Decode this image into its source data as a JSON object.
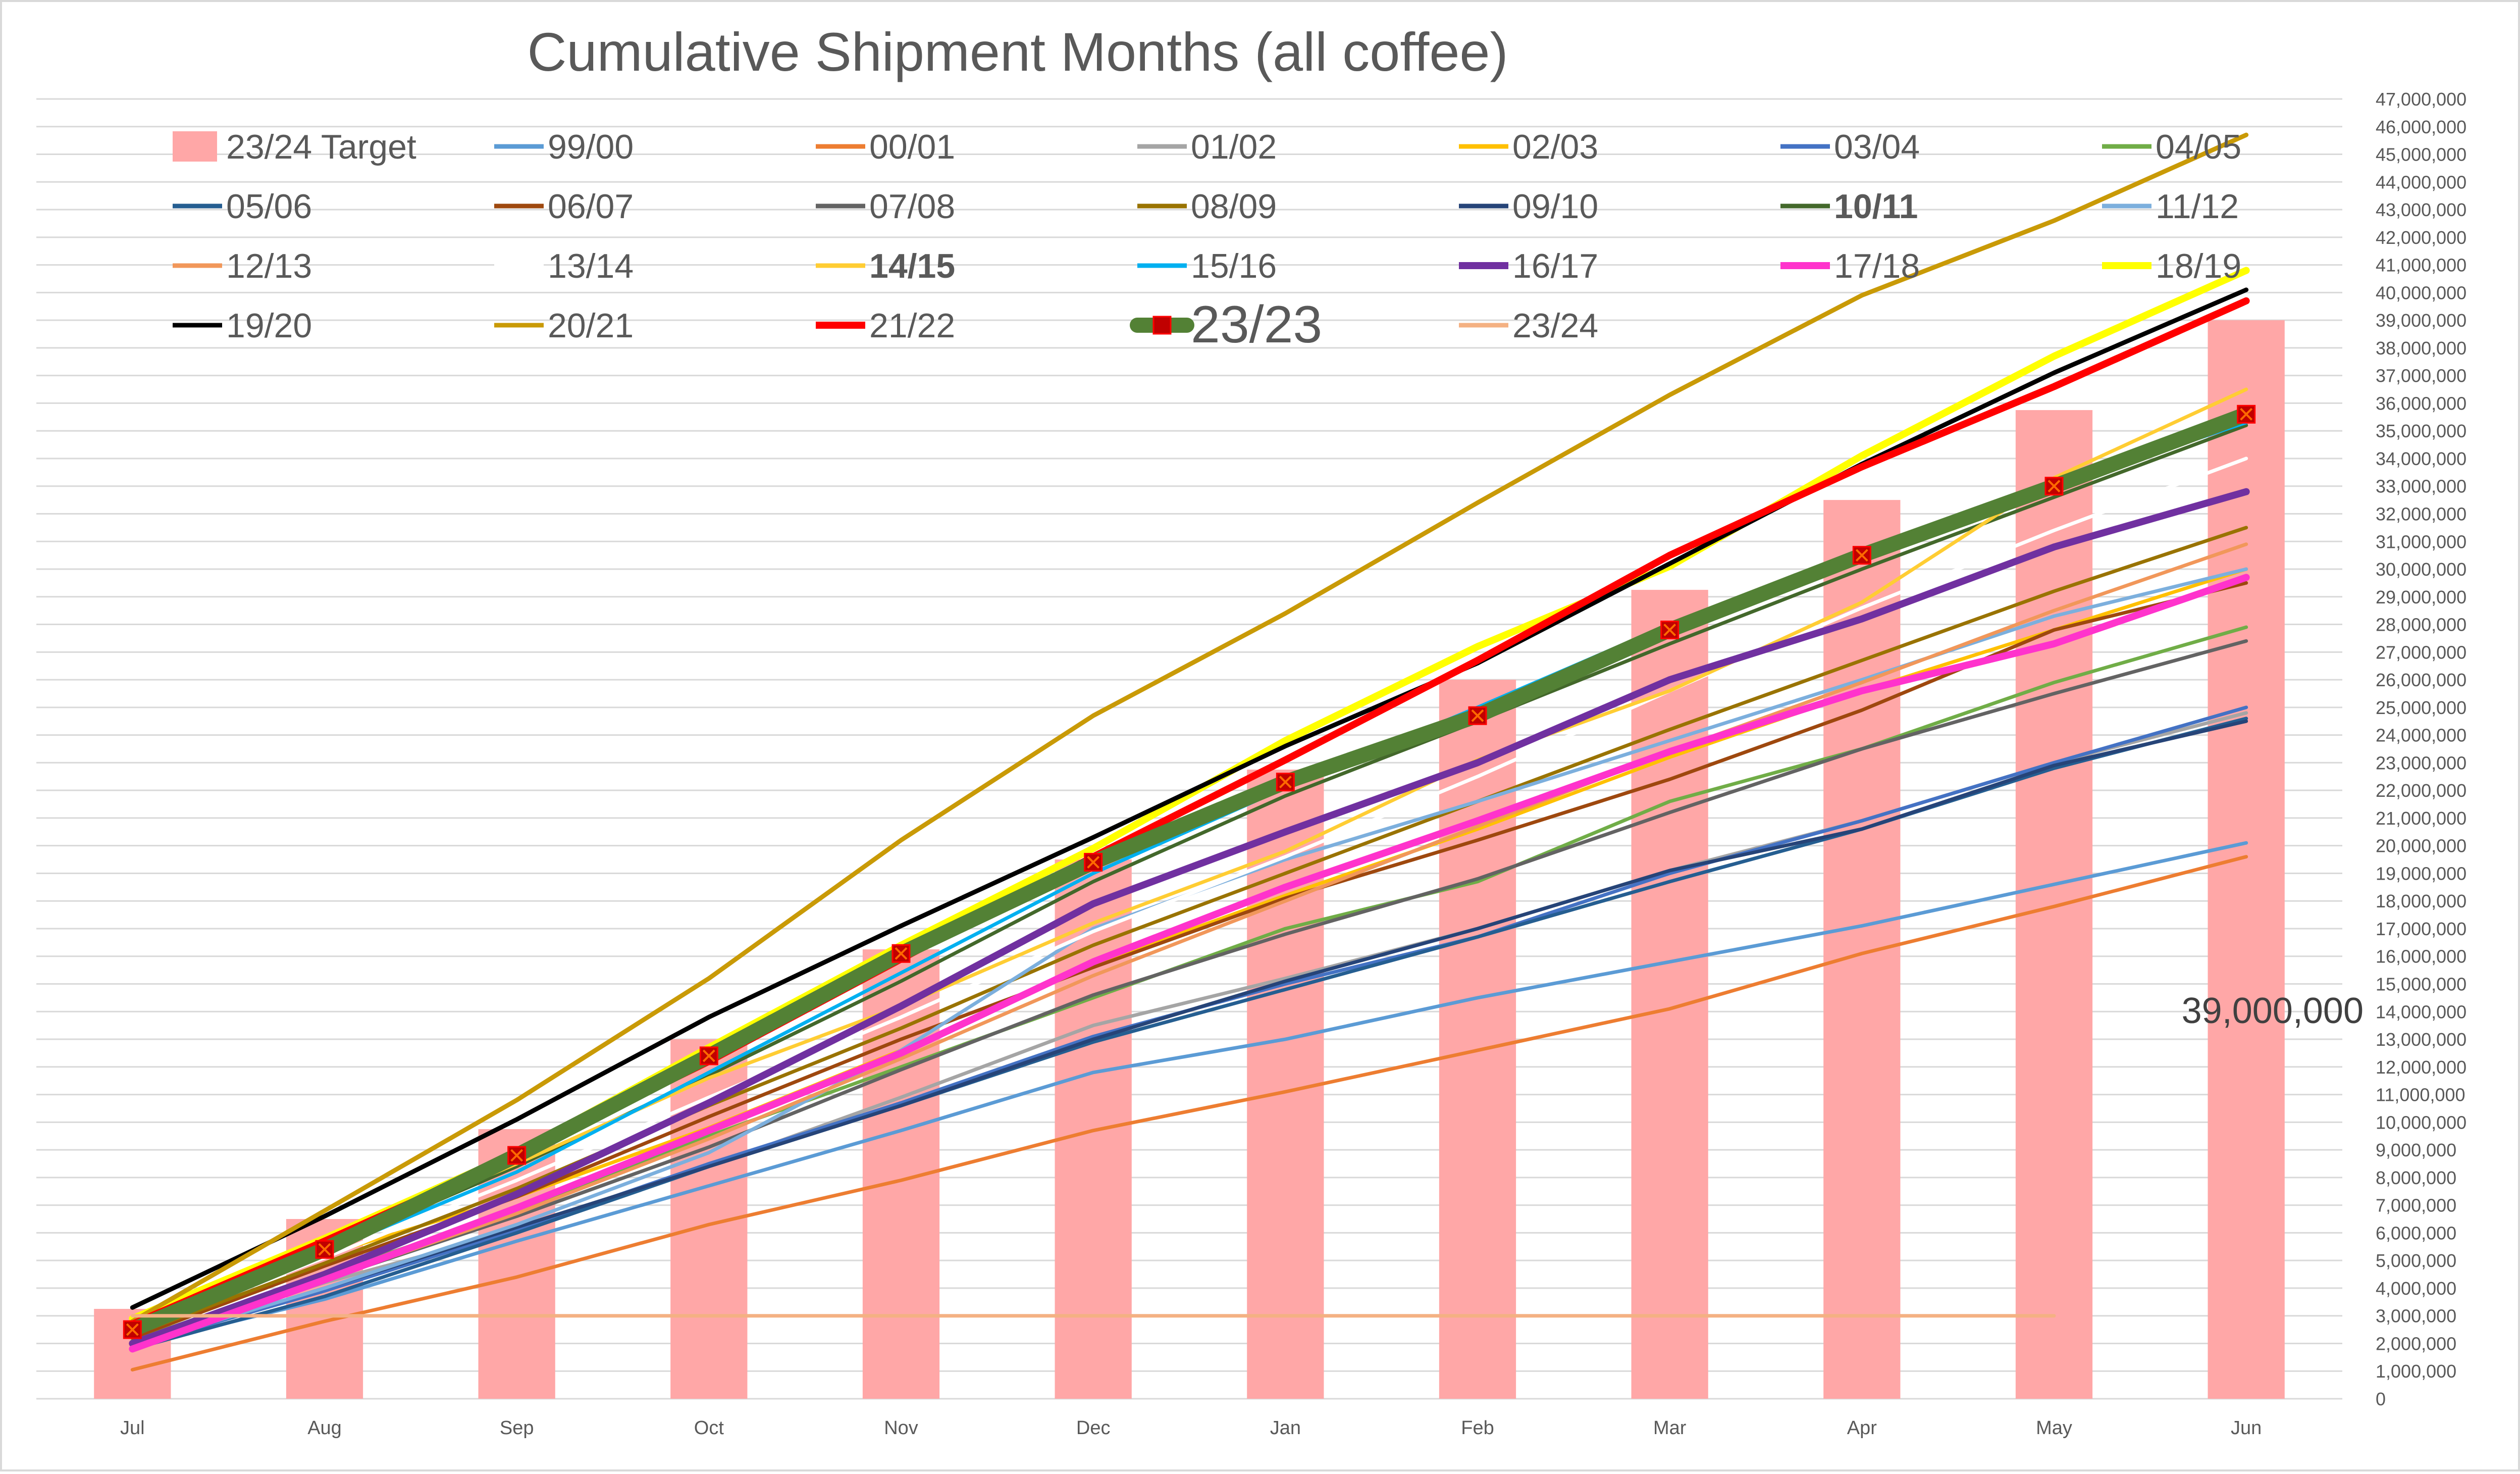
{
  "chart_data": {
    "type": "line",
    "title": "Cumulative Shipment Months (all coffee)",
    "xlabel": "",
    "ylabel": "",
    "categories": [
      "Jul",
      "Aug",
      "Sep",
      "Oct",
      "Nov",
      "Dec",
      "Jan",
      "Feb",
      "Mar",
      "Apr",
      "May",
      "Jun"
    ],
    "ylim": [
      0,
      47000000
    ],
    "ytick_step": 1000000,
    "grid": true,
    "legend_position": "top",
    "bars": {
      "name": "23/24 Target",
      "color": "#ffa7a7",
      "values": [
        3250000,
        6500000,
        9750000,
        13000000,
        16250000,
        19500000,
        22750000,
        26000000,
        29250000,
        32500000,
        35750000,
        39000000
      ]
    },
    "annotation": {
      "text": "39,000,000",
      "category": "Jun"
    },
    "series": [
      {
        "name": "99/00",
        "color": "#5b9bd5",
        "values": [
          1900000,
          3600000,
          5700000,
          7700000,
          9700000,
          11800000,
          13000000,
          14500000,
          15800000,
          17100000,
          18600000,
          20100000
        ]
      },
      {
        "name": "00/01",
        "color": "#ed7d31",
        "values": [
          1050000,
          2800000,
          4400000,
          6300000,
          7900000,
          9700000,
          11100000,
          12600000,
          14100000,
          16100000,
          17800000,
          19600000
        ]
      },
      {
        "name": "01/02",
        "color": "#a5a5a5",
        "values": [
          2000000,
          4200000,
          6100000,
          8400000,
          10900000,
          13500000,
          15200000,
          17000000,
          19100000,
          20900000,
          23000000,
          24800000
        ]
      },
      {
        "name": "02/03",
        "color": "#ffc000",
        "values": [
          2800000,
          5200000,
          7300000,
          9800000,
          12600000,
          15700000,
          18200000,
          20600000,
          23200000,
          25600000,
          27800000,
          30000000
        ]
      },
      {
        "name": "03/04",
        "color": "#4472c4",
        "values": [
          1900000,
          3900000,
          6100000,
          8500000,
          10700000,
          13100000,
          15000000,
          16700000,
          19000000,
          20900000,
          23000000,
          25000000
        ]
      },
      {
        "name": "04/05",
        "color": "#70ad47",
        "values": [
          2100000,
          4500000,
          6800000,
          9500000,
          12000000,
          14500000,
          17000000,
          18700000,
          21600000,
          23500000,
          25900000,
          27900000
        ]
      },
      {
        "name": "05/06",
        "color": "#255e91",
        "values": [
          1800000,
          3700000,
          6000000,
          8400000,
          10600000,
          12900000,
          14800000,
          16700000,
          18700000,
          20600000,
          22800000,
          24600000
        ]
      },
      {
        "name": "06/07",
        "color": "#9e480e",
        "values": [
          2200000,
          4800000,
          7300000,
          10200000,
          13000000,
          15600000,
          18100000,
          20200000,
          22400000,
          24900000,
          27800000,
          29500000
        ]
      },
      {
        "name": "07/08",
        "color": "#636363",
        "values": [
          2000000,
          4300000,
          6600000,
          9100000,
          11900000,
          14600000,
          16800000,
          18800000,
          21200000,
          23500000,
          25500000,
          27400000
        ]
      },
      {
        "name": "08/09",
        "color": "#997300",
        "values": [
          2300000,
          4900000,
          7600000,
          10600000,
          13400000,
          16400000,
          19000000,
          21600000,
          24200000,
          26700000,
          29200000,
          31500000
        ]
      },
      {
        "name": "09/10",
        "color": "#264478",
        "values": [
          1900000,
          4000000,
          6200000,
          8400000,
          10600000,
          13000000,
          15100000,
          17000000,
          19100000,
          20600000,
          22900000,
          24500000
        ]
      },
      {
        "name": "10/11",
        "color": "#43682b",
        "bold": true,
        "values": [
          2600000,
          5400000,
          8400000,
          11700000,
          15100000,
          18700000,
          21800000,
          24500000,
          27300000,
          30000000,
          32600000,
          35200000
        ]
      },
      {
        "name": "11/12",
        "color": "#7cafdd",
        "values": [
          1900000,
          4000000,
          6300000,
          8900000,
          12600000,
          17000000,
          19500000,
          21600000,
          23800000,
          26000000,
          28300000,
          30000000
        ]
      },
      {
        "name": "12/13",
        "color": "#f1975a",
        "values": [
          2000000,
          4300000,
          6700000,
          9400000,
          12300000,
          15300000,
          18000000,
          20700000,
          23400000,
          25900000,
          28500000,
          30900000
        ]
      },
      {
        "name": "13/14",
        "color": "#ffffff",
        "values": [
          2400000,
          5100000,
          7900000,
          10900000,
          13800000,
          16900000,
          19600000,
          22500000,
          25600000,
          28600000,
          31400000,
          34000000
        ]
      },
      {
        "name": "14/15",
        "color": "#ffcd33",
        "bold": true,
        "values": [
          2700000,
          5600000,
          8500000,
          11600000,
          14200000,
          17200000,
          19800000,
          23100000,
          25600000,
          28800000,
          33300000,
          36500000
        ]
      },
      {
        "name": "15/16",
        "color": "#00b0f0",
        "values": [
          2500000,
          5300000,
          8200000,
          11800000,
          15400000,
          19000000,
          22100000,
          25000000,
          28000000,
          30700000,
          33000000,
          35300000
        ]
      },
      {
        "name": "16/17",
        "color": "#7030a0",
        "values": [
          2000000,
          4500000,
          7400000,
          10700000,
          14200000,
          17900000,
          20500000,
          23000000,
          26000000,
          28200000,
          30800000,
          32800000
        ]
      },
      {
        "name": "17/18",
        "color": "#ff33cc",
        "values": [
          1800000,
          4300000,
          6900000,
          9700000,
          12500000,
          15800000,
          18500000,
          20900000,
          23400000,
          25600000,
          27300000,
          29700000
        ]
      },
      {
        "name": "18/19",
        "color": "#ffff00",
        "values": [
          2900000,
          5800000,
          8900000,
          12700000,
          16400000,
          19900000,
          23800000,
          27200000,
          30100000,
          34100000,
          37700000,
          40800000
        ]
      },
      {
        "name": "19/20",
        "color": "#000000",
        "values": [
          3300000,
          6600000,
          10100000,
          13800000,
          17100000,
          20300000,
          23600000,
          26600000,
          30200000,
          33800000,
          37100000,
          40100000
        ]
      },
      {
        "name": "20/21",
        "color": "#c99a06",
        "values": [
          2800000,
          6800000,
          10800000,
          15200000,
          20200000,
          24700000,
          28400000,
          32400000,
          36300000,
          39900000,
          42600000,
          45700000
        ]
      },
      {
        "name": "21/22",
        "color": "#ff0000",
        "values": [
          2700000,
          5700000,
          8800000,
          12200000,
          15900000,
          19600000,
          23100000,
          26700000,
          30500000,
          33700000,
          36600000,
          39700000
        ]
      },
      {
        "name": "23/23",
        "color": "#538135",
        "marker": true,
        "values": [
          2500000,
          5400000,
          8800000,
          12400000,
          16100000,
          19400000,
          22300000,
          24700000,
          27800000,
          30500000,
          33000000,
          35600000
        ]
      },
      {
        "name": "23/24",
        "color": "#f4b183",
        "values": [
          3000000,
          3000000,
          3000000,
          3000000,
          3000000,
          3000000,
          3000000,
          3000000,
          3000000,
          3000000,
          3000000,
          null
        ]
      }
    ]
  }
}
